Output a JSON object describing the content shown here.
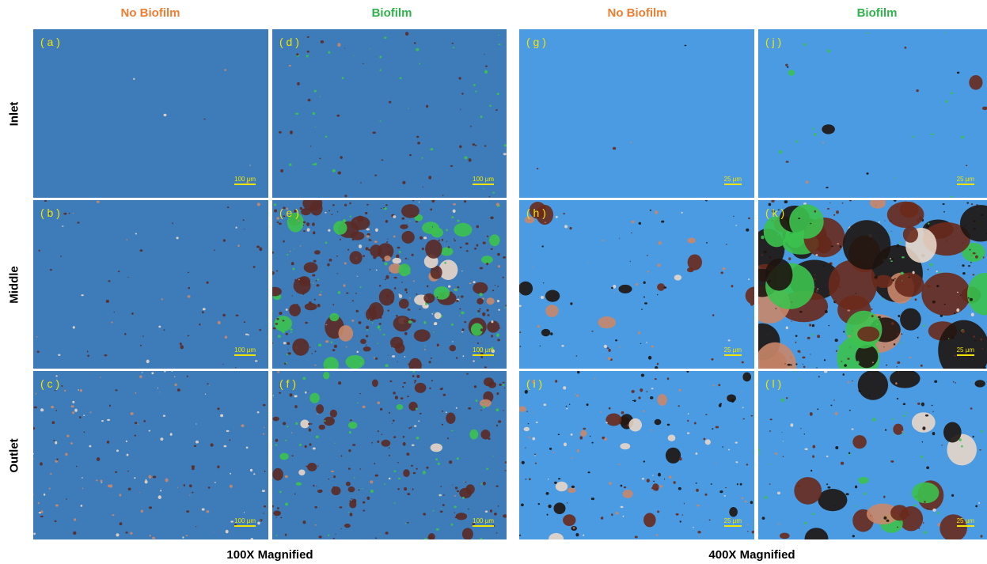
{
  "columns": [
    {
      "label": "No Biofilm"
    },
    {
      "label": "Biofilm"
    },
    {
      "label": "No Biofilm"
    },
    {
      "label": "Biofilm"
    }
  ],
  "rows": [
    "Inlet",
    "Middle",
    "Outlet"
  ],
  "panels": [
    {
      "label": "( a )",
      "scale": "100 µm"
    },
    {
      "label": "( b )",
      "scale": "100 µm"
    },
    {
      "label": "( c )",
      "scale": "100 µm"
    },
    {
      "label": "( d )",
      "scale": "100 µm"
    },
    {
      "label": "( e )",
      "scale": "100 µm"
    },
    {
      "label": "( f )",
      "scale": "100 µm"
    },
    {
      "label": "( g )",
      "scale": "25 µm"
    },
    {
      "label": "( h )",
      "scale": "25 µm"
    },
    {
      "label": "( i )",
      "scale": "25 µm"
    },
    {
      "label": "( j )",
      "scale": "25 µm"
    },
    {
      "label": "( k )",
      "scale": "25 µm"
    },
    {
      "label": "( l )",
      "scale": "25 µm"
    }
  ],
  "footer": [
    "100X Magnified",
    "400X Magnified"
  ]
}
